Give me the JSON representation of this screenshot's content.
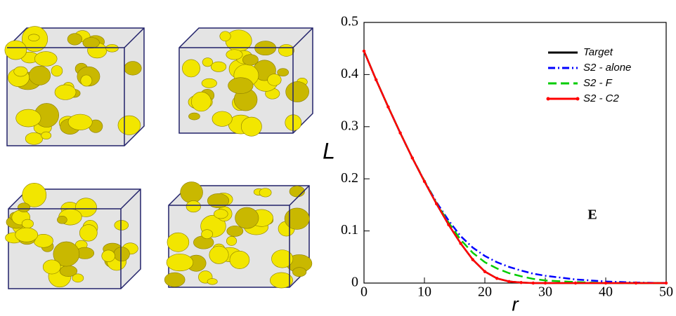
{
  "chart_data": {
    "type": "line",
    "x_label": "r",
    "y_label": "L",
    "annotation": "E",
    "x": [
      0,
      2,
      4,
      6,
      8,
      10,
      12,
      14,
      16,
      18,
      20,
      22,
      24,
      26,
      28,
      30,
      35,
      40,
      45,
      50
    ],
    "series": [
      {
        "name": "Target",
        "color": "#000000",
        "dash": "none",
        "marker": false,
        "values": [
          0.445,
          0.39,
          0.338,
          0.288,
          0.24,
          0.195,
          0.152,
          0.112,
          0.076,
          0.045,
          0.022,
          0.009,
          0.003,
          0.001,
          0,
          0,
          0,
          0,
          0,
          0
        ]
      },
      {
        "name": "S2 - alone",
        "color": "#0000ff",
        "dash": "10 4 2 4",
        "marker": false,
        "values": [
          0.445,
          0.39,
          0.338,
          0.288,
          0.24,
          0.196,
          0.155,
          0.12,
          0.09,
          0.068,
          0.052,
          0.04,
          0.031,
          0.024,
          0.018,
          0.014,
          0.007,
          0.003,
          0.001,
          0
        ]
      },
      {
        "name": "S2 - F",
        "color": "#00cc00",
        "dash": "12 6",
        "marker": false,
        "values": [
          0.445,
          0.39,
          0.338,
          0.288,
          0.24,
          0.196,
          0.153,
          0.116,
          0.083,
          0.058,
          0.04,
          0.028,
          0.019,
          0.013,
          0.008,
          0.005,
          0.002,
          0,
          0,
          0
        ]
      },
      {
        "name": "S2 - C2",
        "color": "#ff0000",
        "dash": "none",
        "marker": true,
        "values": [
          0.445,
          0.39,
          0.338,
          0.288,
          0.24,
          0.195,
          0.152,
          0.112,
          0.076,
          0.045,
          0.022,
          0.009,
          0.003,
          0.001,
          0,
          0,
          0,
          0,
          0,
          0
        ]
      }
    ],
    "xlim": [
      0,
      50
    ],
    "ylim": [
      0,
      0.5
    ],
    "xticks": [
      0,
      10,
      20,
      30,
      40,
      50
    ],
    "yticks": [
      0,
      0.1,
      0.2,
      0.3,
      0.4,
      0.5
    ]
  }
}
